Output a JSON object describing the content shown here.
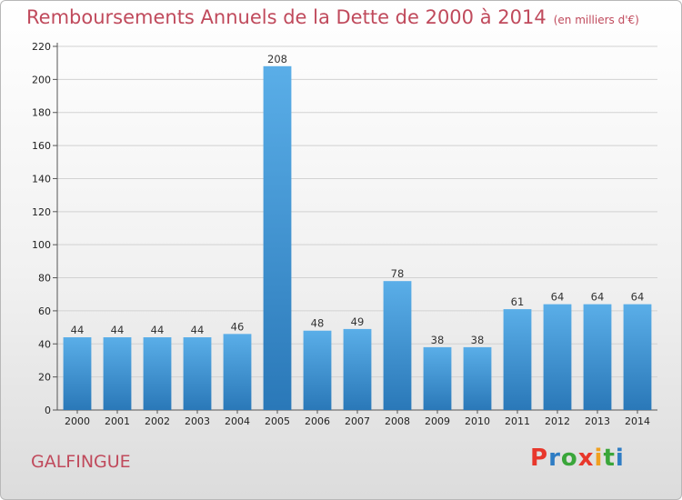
{
  "title": "Remboursements Annuels de la Dette de 2000 à 2014",
  "unit": "(en milliers d'€)",
  "town": "GALFINGUE",
  "logo": {
    "letters": [
      "P",
      "r",
      "o",
      "x",
      "i",
      "t",
      "i"
    ],
    "colors": [
      "#e8372b",
      "#2e7cc4",
      "#3aa63a",
      "#e8372b",
      "#f0a020",
      "#3aa63a",
      "#2e7cc4"
    ]
  },
  "chart_data": {
    "type": "bar",
    "categories": [
      "2000",
      "2001",
      "2002",
      "2003",
      "2004",
      "2005",
      "2006",
      "2007",
      "2008",
      "2009",
      "2010",
      "2011",
      "2012",
      "2013",
      "2014"
    ],
    "values": [
      44,
      44,
      44,
      44,
      46,
      208,
      48,
      49,
      78,
      38,
      38,
      61,
      64,
      64,
      64
    ],
    "ylim": [
      0,
      220
    ],
    "yticks": [
      0,
      20,
      40,
      60,
      80,
      100,
      120,
      140,
      160,
      180,
      200,
      220
    ],
    "grid": true,
    "bar_color_top": "#5aaee8",
    "bar_color_bottom": "#2a78b8"
  }
}
